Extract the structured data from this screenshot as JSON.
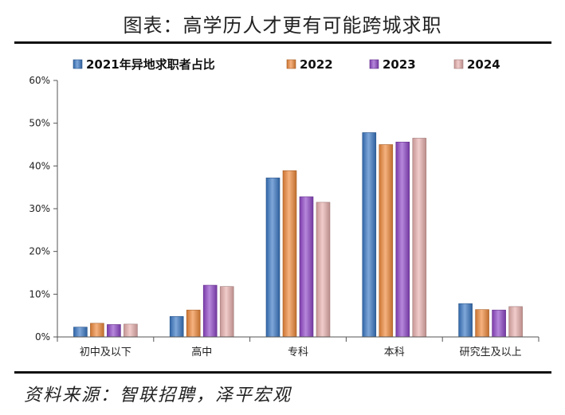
{
  "title": "图表：高学历人才更有可能跨城求职",
  "source": "资料来源：智联招聘，泽平宏观",
  "chart_data": {
    "type": "bar",
    "categories": [
      "初中及以下",
      "高中",
      "专科",
      "本科",
      "研究生及以上"
    ],
    "series": [
      {
        "name": "2021年异地求职者占比",
        "color": "#3a78c4",
        "values": [
          2.3,
          4.8,
          37.2,
          47.8,
          7.8
        ]
      },
      {
        "name": "2022",
        "color": "#f0893a",
        "values": [
          3.2,
          6.3,
          38.9,
          45.0,
          6.4
        ]
      },
      {
        "name": "2023",
        "color": "#8f46c8",
        "values": [
          2.9,
          12.1,
          32.8,
          45.6,
          6.3
        ]
      },
      {
        "name": "2024",
        "color": "#e8b0ae",
        "values": [
          3.0,
          11.8,
          31.5,
          46.5,
          7.1
        ]
      }
    ],
    "ylim": [
      0,
      60
    ],
    "yticks": [
      "0%",
      "10%",
      "20%",
      "30%",
      "40%",
      "50%",
      "60%"
    ],
    "legend_position": "top",
    "grid": false
  }
}
